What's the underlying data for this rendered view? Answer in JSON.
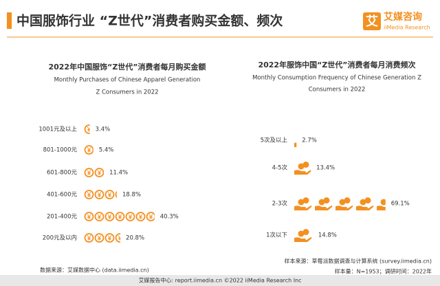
{
  "header": {
    "title": "中国服饰行业 “Z世代”消费者购买金额、频次",
    "logo_char": "艾",
    "logo_cn": "艾媒咨询",
    "logo_en": "iiMedia Research"
  },
  "chart_data": [
    {
      "type": "bar",
      "title": "2022年中国服饰“Z世代”消费者每月购买金额",
      "subtitle": [
        "Monthly Purchases of Chinese Apparel Generation",
        "Z Consumers in 2022"
      ],
      "categories": [
        "1001元及以上",
        "801-1000元",
        "601-800元",
        "401-600元",
        "201-400元",
        "200元及以内"
      ],
      "values": [
        3.4,
        5.4,
        11.4,
        18.8,
        40.3,
        20.8
      ],
      "value_labels": [
        "3.4%",
        "5.4%",
        "11.4%",
        "18.8%",
        "40.3%",
        "20.8%"
      ],
      "color": "#f39020",
      "icon": "coin"
    },
    {
      "type": "bar",
      "title": "2022年服饰中国“Z世代”消费者每月消费频次",
      "subtitle": [
        "Monthly Consumption Frequency of Chinese Generation Z",
        "Consumers in 2022"
      ],
      "categories": [
        "5次及以上",
        "4-5次",
        "2-3次",
        "1次以下"
      ],
      "values": [
        2.7,
        13.4,
        69.1,
        14.8
      ],
      "value_labels": [
        "2.7%",
        "13.4%",
        "69.1%",
        "14.8%"
      ],
      "color": "#f39020",
      "icon": "hand"
    }
  ],
  "notes": {
    "left": "数据来源：艾媒数据中心 (data.iimedia.cn)",
    "right": [
      "样本来源：草莓派数据调查与计算系统 (survey.iimedia.cn)",
      "样本量：N=1953；调研时间：2022年"
    ]
  },
  "footer": "艾媒报告中心: report.iimedia.cn ©2022 iiMedia Research Inc"
}
